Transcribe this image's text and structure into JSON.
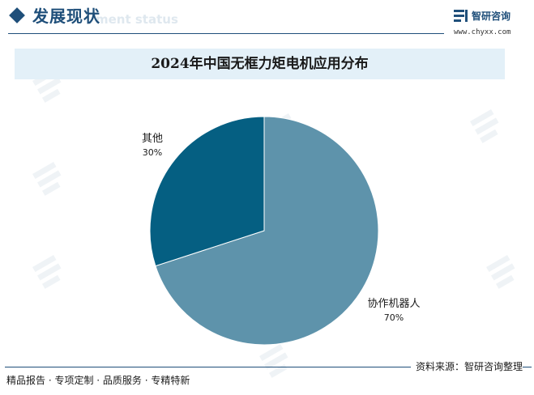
{
  "header": {
    "section_title": "发展现状",
    "section_subtitle": "ment status",
    "brand_name": "智研咨询",
    "brand_url": "www.chyxx.com"
  },
  "chart_data": {
    "type": "pie",
    "title": "2024年中国无框力矩电机应用分布",
    "slices": [
      {
        "label": "协作机器人",
        "value": 70,
        "value_label": "70%",
        "color": "#5e93ab"
      },
      {
        "label": "其他",
        "value": 30,
        "value_label": "30%",
        "color": "#055f82"
      }
    ],
    "start": "12 o'clock",
    "direction": "clockwise"
  },
  "footer": {
    "source": "资料来源：智研咨询整理",
    "slogan": "精品报告 · 专项定制 · 品质服务 · 专精特新"
  },
  "colors": {
    "brand": "#1f4f7a",
    "title_bar_bg": "#e3f0f8"
  }
}
